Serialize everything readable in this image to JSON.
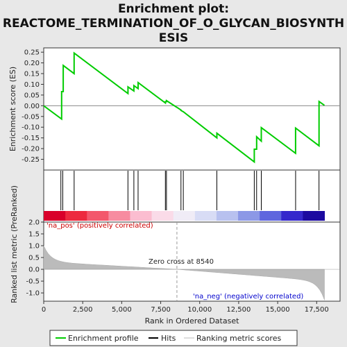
{
  "chart_data": {
    "type": "line",
    "title_line1": "Enrichment plot:",
    "title_line2": "REACTOME_TERMINATION_OF_O_GLYCAN_BIOSYNTH",
    "title_line3": "ESIS",
    "es_panel": {
      "ylabel": "Enrichment score (ES)",
      "ylim": [
        -0.3,
        0.27
      ],
      "yticks": [
        0.25,
        0.2,
        0.15,
        0.1,
        0.05,
        0.0,
        -0.05,
        -0.1,
        -0.15,
        -0.2,
        -0.25
      ],
      "ytick_labels": [
        "0.25",
        "0.20",
        "0.15",
        "0.10",
        "0.05",
        "0.00",
        "-0.05",
        "-0.10",
        "-0.15",
        "-0.20",
        "-0.25"
      ],
      "series_color": "#00cc00",
      "points": [
        [
          0,
          0.0
        ],
        [
          1150,
          -0.062
        ],
        [
          1150,
          0.066
        ],
        [
          1250,
          0.066
        ],
        [
          1250,
          0.188
        ],
        [
          1950,
          0.15
        ],
        [
          1950,
          0.246
        ],
        [
          5400,
          0.057
        ],
        [
          5400,
          0.088
        ],
        [
          5780,
          0.069
        ],
        [
          5780,
          0.094
        ],
        [
          6050,
          0.08
        ],
        [
          6050,
          0.108
        ],
        [
          7800,
          0.013
        ],
        [
          7800,
          0.019
        ],
        [
          7870,
          0.019
        ],
        [
          7870,
          0.024
        ],
        [
          8800,
          -0.02
        ],
        [
          8800,
          -0.022
        ],
        [
          8950,
          -0.028
        ],
        [
          11100,
          -0.15
        ],
        [
          11100,
          -0.128
        ],
        [
          13500,
          -0.262
        ],
        [
          13500,
          -0.203
        ],
        [
          13650,
          -0.203
        ],
        [
          13650,
          -0.145
        ],
        [
          13950,
          -0.165
        ],
        [
          13950,
          -0.102
        ],
        [
          16150,
          -0.222
        ],
        [
          16150,
          -0.104
        ],
        [
          17650,
          -0.187
        ],
        [
          17650,
          0.02
        ],
        [
          18000,
          0.002
        ]
      ]
    },
    "hits": [
      1100,
      1220,
      1950,
      5400,
      5780,
      6050,
      7800,
      7870,
      8800,
      8950,
      11100,
      13500,
      13650,
      13950,
      16150,
      17650
    ],
    "heatmap_colors": [
      "#d9002a",
      "#ed2a3f",
      "#f3586c",
      "#f78ca0",
      "#fbbdd0",
      "#fadbe8",
      "#f0ecf6",
      "#d8dcf5",
      "#b8c1ef",
      "#8c98e6",
      "#5f66de",
      "#3528cc",
      "#1c0aa0"
    ],
    "rank_panel": {
      "ylabel": "Ranked list metric (PreRanked)",
      "ylim": [
        -1.35,
        2.0
      ],
      "yticks": [
        2.0,
        1.5,
        1.0,
        0.5,
        0.0,
        -0.5,
        -1.0
      ],
      "ytick_labels": [
        "2.0",
        "1.5",
        "1.0",
        "0.5",
        "0.0",
        "-0.5",
        "-1.0"
      ],
      "pos_label": "'na_pos' (positively correlated)",
      "neg_label": "'na_neg' (negatively correlated)",
      "zero_cross_label": "Zero cross at 8540",
      "zero_cross": 8540,
      "pos_color": "#cc0000",
      "neg_color": "#0000cc"
    },
    "xlabel": "Rank in Ordered Dataset",
    "xlim": [
      0,
      19000
    ],
    "xticks": [
      0,
      2500,
      5000,
      7500,
      10000,
      12500,
      15000,
      17500
    ],
    "xtick_labels": [
      "0",
      "2,500",
      "5,000",
      "7,500",
      "10,000",
      "12,500",
      "15,000",
      "17,500"
    ],
    "n_genes": 18000,
    "legend": {
      "enrichment_profile": "Enrichment profile",
      "hits": "Hits",
      "ranking_metric": "Ranking metric scores"
    }
  }
}
